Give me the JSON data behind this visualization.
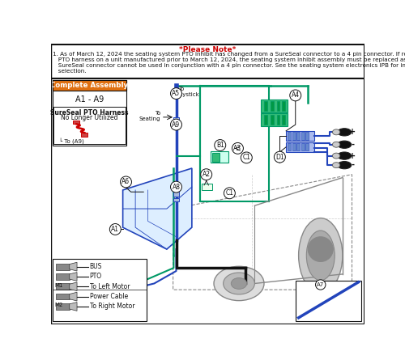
{
  "title": "*Please Note*",
  "title_color": "#cc0000",
  "note_line1": "1. As of March 12, 2024 the seating system PTO inhibit has changed from a SureSeal connector to a 4 pin connector. If replacing the",
  "note_line2": "   PTO harness on a unit manufactured prior to March 12, 2024, the seating system inhibit assembly must be replaced as well. A",
  "note_line3": "   SureSeal connector cannot be used in conjunction with a 4 pin connector. See the seating system electronics IPB for inhibit",
  "note_line4": "   selection.",
  "note_fontsize": 5.2,
  "bg_color": "#ffffff",
  "assembly_box_color": "#e07010",
  "assembly_text": "Complete Assembly",
  "assembly_sub": "A1 - A9",
  "sureseal_text": "SureSeal PTO Harness",
  "sureseal_text2": "No Longer Utilized",
  "sureseal_to": "└ To (A9)",
  "green": "#009966",
  "blue": "#2244bb",
  "black": "#111111",
  "gray": "#888888",
  "lgray": "#cccccc",
  "bottom_labels": [
    "BUS",
    "PTO",
    "To Left Motor",
    "Power Cable",
    "To Right Motor"
  ]
}
